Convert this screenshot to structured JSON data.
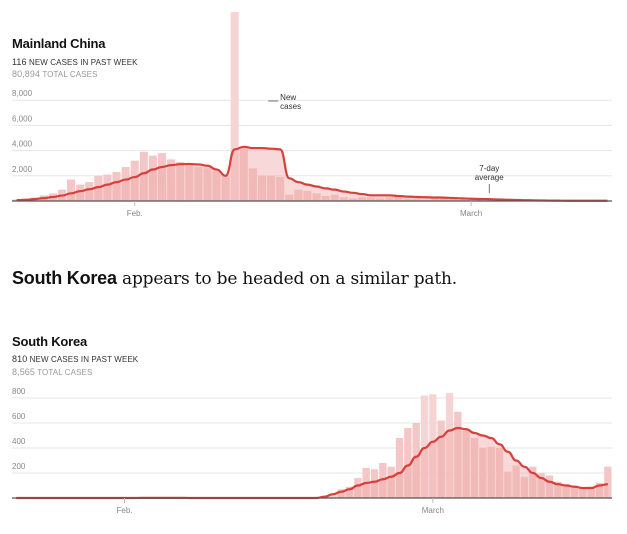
{
  "headline": {
    "bold": "South Korea",
    "rest": " appears to be headed on a similar path."
  },
  "colors": {
    "bar": "#f4c6c6",
    "bar_spike": "#f7d4d4",
    "line": "#d6423b",
    "area": "#f0a9a9",
    "grid": "#e5e5e5",
    "axis": "#bbbbbb"
  },
  "chart_data": [
    {
      "type": "bar",
      "title": "Mainland China",
      "new_cases_value": "116",
      "new_cases_label": "NEW CASES IN PAST WEEK",
      "total_cases_value": "80,894",
      "total_cases_label": "TOTAL CASES",
      "y_ticks": [
        2000,
        4000,
        6000,
        8000
      ],
      "y_tick_labels": [
        "2,000",
        "4,000",
        "6,000",
        "8,000"
      ],
      "ylim": [
        0,
        15000
      ],
      "x_tick_labels": [
        "Feb.",
        "March"
      ],
      "x_tick_index": [
        13,
        50
      ],
      "annotations": [
        {
          "text_lines": [
            "New",
            "cases"
          ],
          "bar_index": 29
        },
        {
          "text_lines": [
            "7-day",
            "average"
          ],
          "bar_index": 52
        }
      ],
      "daily_new_cases": [
        120,
        150,
        280,
        450,
        600,
        900,
        1700,
        1300,
        1500,
        2000,
        2100,
        2300,
        2700,
        3200,
        3900,
        3600,
        3800,
        3300,
        3100,
        3000,
        2700,
        2600,
        2400,
        2000,
        15000,
        4300,
        2600,
        2000,
        2000,
        1900,
        500,
        900,
        800,
        600,
        400,
        500,
        300,
        200,
        300,
        300,
        200,
        300,
        400,
        200,
        200,
        100,
        200,
        200,
        200,
        100,
        100,
        100,
        100,
        50,
        60,
        40,
        30,
        30,
        20,
        20,
        20,
        20,
        20,
        20,
        20,
        20
      ],
      "seven_day_average": [
        60,
        100,
        150,
        230,
        320,
        430,
        610,
        780,
        930,
        1100,
        1300,
        1500,
        1700,
        1900,
        2200,
        2500,
        2700,
        2850,
        2920,
        2940,
        2900,
        2800,
        2500,
        2000,
        4100,
        4300,
        4200,
        4200,
        4150,
        4100,
        1800,
        1500,
        1300,
        1150,
        1000,
        900,
        750,
        650,
        550,
        450,
        450,
        450,
        400,
        350,
        320,
        300,
        280,
        270,
        240,
        210,
        180,
        160,
        150,
        120,
        100,
        80,
        65,
        50,
        40,
        30,
        25,
        20,
        20,
        20,
        20,
        20
      ]
    },
    {
      "type": "bar",
      "title": "South Korea",
      "new_cases_value": "810",
      "new_cases_label": "NEW CASES IN PAST WEEK",
      "total_cases_value": "8,565",
      "total_cases_label": "TOTAL CASES",
      "y_ticks": [
        200,
        400,
        600,
        800
      ],
      "y_tick_labels": [
        "200",
        "400",
        "600",
        "800"
      ],
      "ylim": [
        0,
        880
      ],
      "x_tick_labels": [
        "Feb.",
        "March"
      ],
      "x_tick_index": [
        13,
        50
      ],
      "daily_new_cases": [
        0,
        0,
        0,
        0,
        0,
        0,
        0,
        0,
        0,
        0,
        0,
        0,
        0,
        0,
        0,
        2,
        1,
        2,
        1,
        0,
        0,
        0,
        0,
        0,
        0,
        0,
        0,
        0,
        0,
        0,
        0,
        0,
        0,
        0,
        0,
        0,
        0,
        0,
        0,
        70,
        90,
        160,
        240,
        230,
        280,
        250,
        480,
        560,
        600,
        820,
        830,
        620,
        840,
        690,
        540,
        480,
        400,
        410,
        400,
        210,
        260,
        170,
        250,
        200,
        180,
        130,
        110,
        100,
        80,
        90,
        120,
        250
      ],
      "seven_day_average": [
        0,
        0,
        0,
        0,
        0,
        0,
        0,
        0,
        0,
        0,
        0,
        0,
        0,
        0,
        0,
        1,
        1,
        1,
        1,
        1,
        1,
        0,
        0,
        0,
        0,
        0,
        0,
        0,
        0,
        0,
        0,
        0,
        0,
        0,
        0,
        0,
        0,
        10,
        30,
        50,
        70,
        100,
        120,
        130,
        150,
        170,
        200,
        260,
        330,
        400,
        450,
        490,
        540,
        560,
        550,
        520,
        500,
        480,
        430,
        370,
        300,
        250,
        200,
        160,
        130,
        110,
        100,
        90,
        80,
        80,
        100,
        110
      ]
    }
  ]
}
